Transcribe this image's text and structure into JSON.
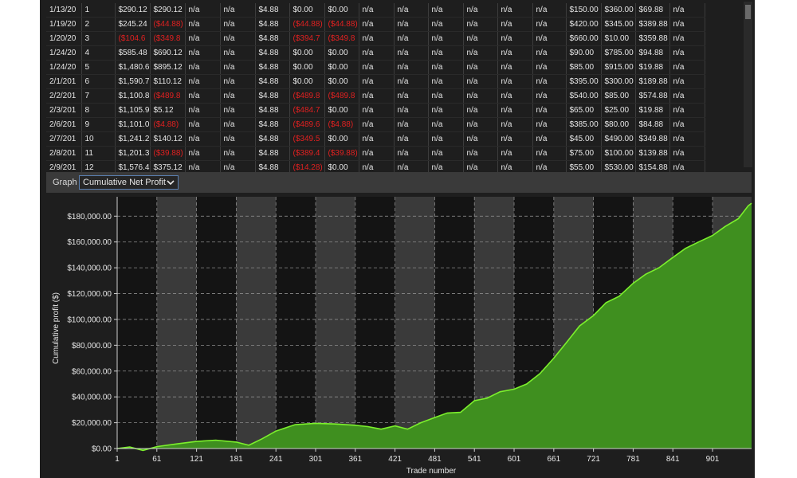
{
  "table": {
    "rows": [
      {
        "date": "1/13/20",
        "num": "1",
        "c1": "$290.12",
        "c2": "$290.12",
        "c3": "n/a",
        "c4": "n/a",
        "c5": "$4.88",
        "c6": "$0.00",
        "c7": "$0.00",
        "c8": "n/a",
        "c9": "n/a",
        "c10": "n/a",
        "c11": "n/a",
        "c12": "n/a",
        "c13": "n/a",
        "c14": "$150.00",
        "c15": "$360.00",
        "c16": "$69.88",
        "c17": "n/a"
      },
      {
        "date": "1/19/20",
        "num": "2",
        "c1": "$245.24",
        "c2": "($44.88)",
        "c3": "n/a",
        "c4": "n/a",
        "c5": "$4.88",
        "c6": "($44.88)",
        "c7": "($44.88)",
        "c8": "n/a",
        "c9": "n/a",
        "c10": "n/a",
        "c11": "n/a",
        "c12": "n/a",
        "c13": "n/a",
        "c14": "$420.00",
        "c15": "$345.00",
        "c16": "$389.88",
        "c17": "n/a"
      },
      {
        "date": "1/20/20",
        "num": "3",
        "c1": "($104.6",
        "c2": "($349.8",
        "c3": "n/a",
        "c4": "n/a",
        "c5": "$4.88",
        "c6": "($394.7",
        "c7": "($349.8",
        "c8": "n/a",
        "c9": "n/a",
        "c10": "n/a",
        "c11": "n/a",
        "c12": "n/a",
        "c13": "n/a",
        "c14": "$660.00",
        "c15": "$10.00",
        "c16": "$359.88",
        "c17": "n/a"
      },
      {
        "date": "1/24/20",
        "num": "4",
        "c1": "$585.48",
        "c2": "$690.12",
        "c3": "n/a",
        "c4": "n/a",
        "c5": "$4.88",
        "c6": "$0.00",
        "c7": "$0.00",
        "c8": "n/a",
        "c9": "n/a",
        "c10": "n/a",
        "c11": "n/a",
        "c12": "n/a",
        "c13": "n/a",
        "c14": "$90.00",
        "c15": "$785.00",
        "c16": "$94.88",
        "c17": "n/a"
      },
      {
        "date": "1/24/20",
        "num": "5",
        "c1": "$1,480.6",
        "c2": "$895.12",
        "c3": "n/a",
        "c4": "n/a",
        "c5": "$4.88",
        "c6": "$0.00",
        "c7": "$0.00",
        "c8": "n/a",
        "c9": "n/a",
        "c10": "n/a",
        "c11": "n/a",
        "c12": "n/a",
        "c13": "n/a",
        "c14": "$85.00",
        "c15": "$915.00",
        "c16": "$19.88",
        "c17": "n/a"
      },
      {
        "date": "2/1/201",
        "num": "6",
        "c1": "$1,590.7",
        "c2": "$110.12",
        "c3": "n/a",
        "c4": "n/a",
        "c5": "$4.88",
        "c6": "$0.00",
        "c7": "$0.00",
        "c8": "n/a",
        "c9": "n/a",
        "c10": "n/a",
        "c11": "n/a",
        "c12": "n/a",
        "c13": "n/a",
        "c14": "$395.00",
        "c15": "$300.00",
        "c16": "$189.88",
        "c17": "n/a"
      },
      {
        "date": "2/2/201",
        "num": "7",
        "c1": "$1,100.8",
        "c2": "($489.8",
        "c3": "n/a",
        "c4": "n/a",
        "c5": "$4.88",
        "c6": "($489.8",
        "c7": "($489.8",
        "c8": "n/a",
        "c9": "n/a",
        "c10": "n/a",
        "c11": "n/a",
        "c12": "n/a",
        "c13": "n/a",
        "c14": "$540.00",
        "c15": "$85.00",
        "c16": "$574.88",
        "c17": "n/a"
      },
      {
        "date": "2/3/201",
        "num": "8",
        "c1": "$1,105.9",
        "c2": "$5.12",
        "c3": "n/a",
        "c4": "n/a",
        "c5": "$4.88",
        "c6": "($484.7",
        "c7": "$0.00",
        "c8": "n/a",
        "c9": "n/a",
        "c10": "n/a",
        "c11": "n/a",
        "c12": "n/a",
        "c13": "n/a",
        "c14": "$65.00",
        "c15": "$25.00",
        "c16": "$19.88",
        "c17": "n/a"
      },
      {
        "date": "2/6/201",
        "num": "9",
        "c1": "$1,101.0",
        "c2": "($4.88)",
        "c3": "n/a",
        "c4": "n/a",
        "c5": "$4.88",
        "c6": "($489.6",
        "c7": "($4.88)",
        "c8": "n/a",
        "c9": "n/a",
        "c10": "n/a",
        "c11": "n/a",
        "c12": "n/a",
        "c13": "n/a",
        "c14": "$385.00",
        "c15": "$80.00",
        "c16": "$84.88",
        "c17": "n/a"
      },
      {
        "date": "2/7/201",
        "num": "10",
        "c1": "$1,241.2",
        "c2": "$140.12",
        "c3": "n/a",
        "c4": "n/a",
        "c5": "$4.88",
        "c6": "($349.5",
        "c7": "$0.00",
        "c8": "n/a",
        "c9": "n/a",
        "c10": "n/a",
        "c11": "n/a",
        "c12": "n/a",
        "c13": "n/a",
        "c14": "$45.00",
        "c15": "$490.00",
        "c16": "$349.88",
        "c17": "n/a"
      },
      {
        "date": "2/8/201",
        "num": "11",
        "c1": "$1,201.3",
        "c2": "($39.88)",
        "c3": "n/a",
        "c4": "n/a",
        "c5": "$4.88",
        "c6": "($389.4",
        "c7": "($39.88)",
        "c8": "n/a",
        "c9": "n/a",
        "c10": "n/a",
        "c11": "n/a",
        "c12": "n/a",
        "c13": "n/a",
        "c14": "$75.00",
        "c15": "$100.00",
        "c16": "$139.88",
        "c17": "n/a"
      },
      {
        "date": "2/9/201",
        "num": "12",
        "c1": "$1,576.4",
        "c2": "$375.12",
        "c3": "n/a",
        "c4": "n/a",
        "c5": "$4.88",
        "c6": "($14.28)",
        "c7": "$0.00",
        "c8": "n/a",
        "c9": "n/a",
        "c10": "n/a",
        "c11": "n/a",
        "c12": "n/a",
        "c13": "n/a",
        "c14": "$55.00",
        "c15": "$530.00",
        "c16": "$154.88",
        "c17": "n/a"
      }
    ]
  },
  "graph_toolbar": {
    "label": "Graph",
    "selected": "Cumulative Net Profit",
    "chevron_icon": "chevron-down-icon"
  },
  "colors": {
    "negative": "#e02020",
    "area_fill": "#3f8f1f",
    "line": "#7cf02c",
    "accent": "#5a7fb0"
  },
  "chart_data": {
    "type": "area",
    "title": "",
    "xlabel": "Trade number",
    "ylabel": "Cumulative profit ($)",
    "xlim": [
      1,
      960
    ],
    "ylim": [
      0,
      195000
    ],
    "xticks": [
      1,
      61,
      121,
      181,
      241,
      301,
      361,
      421,
      481,
      541,
      601,
      661,
      721,
      781,
      841,
      901
    ],
    "xtick_labels": [
      "1",
      "61",
      "121",
      "181",
      "241",
      "301",
      "361",
      "421",
      "481",
      "541",
      "601",
      "661",
      "721",
      "781",
      "841",
      "901"
    ],
    "yticks": [
      0,
      20000,
      40000,
      60000,
      80000,
      100000,
      120000,
      140000,
      160000,
      180000
    ],
    "ytick_labels": [
      "$0.00",
      "$20,000.00",
      "$40,000.00",
      "$60,000.00",
      "$80,000.00",
      "$100,000.00",
      "$120,000.00",
      "$140,000.00",
      "$160,000.00",
      "$180,000.00"
    ],
    "grid": true,
    "series": [
      {
        "x": [
          1,
          20,
          40,
          61,
          90,
          121,
          150,
          181,
          200,
          220,
          241,
          270,
          301,
          330,
          361,
          380,
          400,
          421,
          440,
          460,
          481,
          500,
          520,
          541,
          560,
          580,
          601,
          620,
          640,
          661,
          680,
          700,
          721,
          740,
          760,
          781,
          800,
          820,
          841,
          860,
          880,
          901,
          920,
          940,
          955,
          960
        ],
        "values": [
          0,
          1200,
          -1500,
          1500,
          3500,
          5500,
          6500,
          5000,
          2500,
          7500,
          13500,
          18500,
          19500,
          19000,
          18000,
          17000,
          15000,
          17500,
          15000,
          20000,
          24000,
          27500,
          28000,
          37000,
          39000,
          44000,
          46000,
          50000,
          58000,
          70000,
          82000,
          95000,
          103000,
          113000,
          118000,
          128000,
          135000,
          140000,
          148000,
          155000,
          160000,
          165000,
          172000,
          178000,
          188000,
          190000
        ]
      }
    ]
  }
}
